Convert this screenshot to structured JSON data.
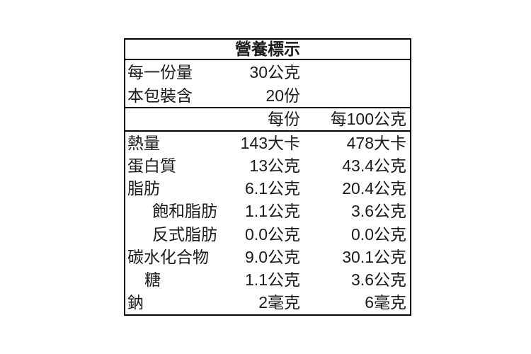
{
  "colors": {
    "background": "#ffffff",
    "border": "#000000",
    "text": "#1a1a1a"
  },
  "table": {
    "title": "營養標示",
    "serving_info": [
      {
        "label": "每一份量",
        "value": "30公克"
      },
      {
        "label": "本包裝含",
        "value": "20份"
      }
    ],
    "column_headers": {
      "per_serving": "每份",
      "per_100g": "每100公克"
    },
    "rows": [
      {
        "label": "熱量",
        "indent": 0,
        "per_serving": "143大卡",
        "per_100g": "478大卡"
      },
      {
        "label": "蛋白質",
        "indent": 0,
        "per_serving": "13公克",
        "per_100g": "43.4公克"
      },
      {
        "label": "脂肪",
        "indent": 0,
        "per_serving": "6.1公克",
        "per_100g": "20.4公克"
      },
      {
        "label": "飽和脂肪",
        "indent": 1,
        "per_serving": "1.1公克",
        "per_100g": "3.6公克"
      },
      {
        "label": "反式脂肪",
        "indent": 1,
        "per_serving": "0.0公克",
        "per_100g": "0.0公克"
      },
      {
        "label": "碳水化合物",
        "indent": 0,
        "per_serving": "9.0公克",
        "per_100g": "30.1公克"
      },
      {
        "label": "糖",
        "indent": 2,
        "per_serving": "1.1公克",
        "per_100g": "3.6公克"
      },
      {
        "label": "鈉",
        "indent": 0,
        "per_serving": "2毫克",
        "per_100g": "6毫克"
      }
    ]
  }
}
